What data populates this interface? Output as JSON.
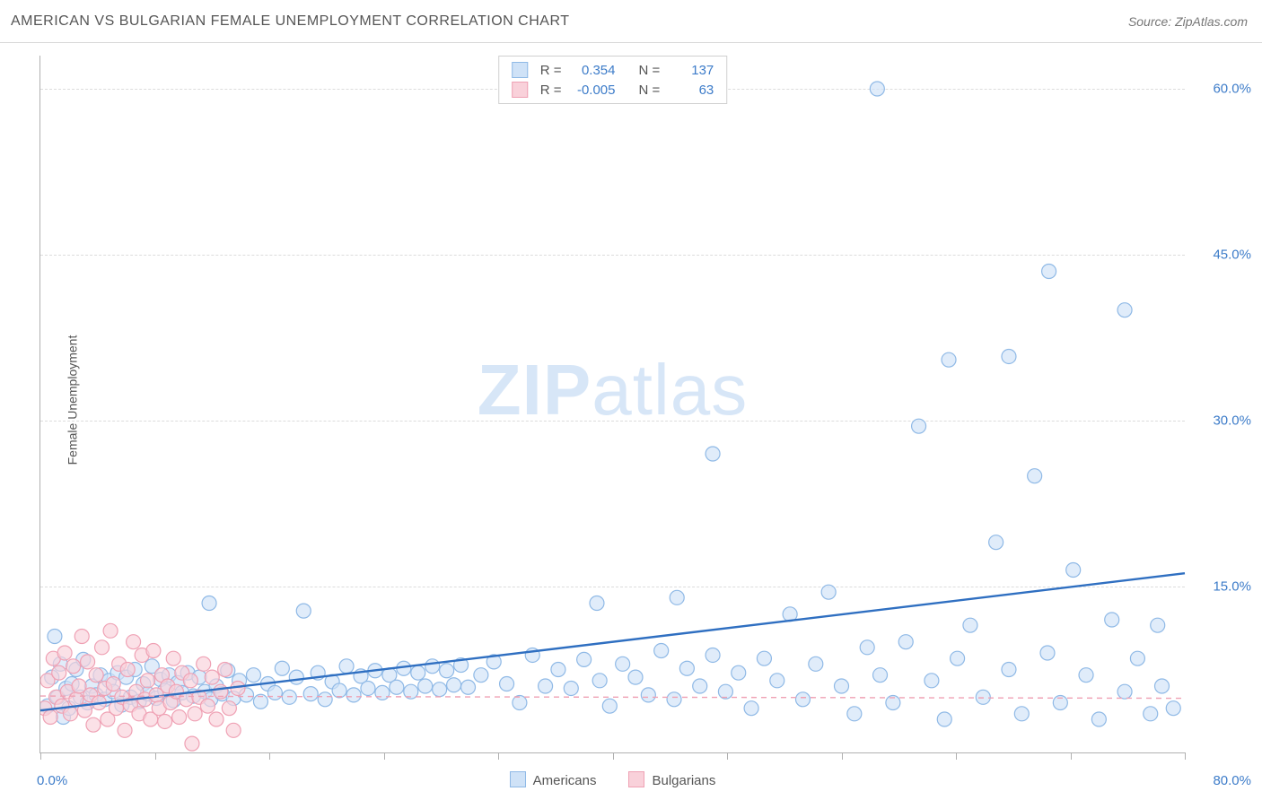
{
  "title": "AMERICAN VS BULGARIAN FEMALE UNEMPLOYMENT CORRELATION CHART",
  "source_prefix": "Source: ",
  "source_link": "ZipAtlas.com",
  "ylabel": "Female Unemployment",
  "watermark_bold": "ZIP",
  "watermark_rest": "atlas",
  "chart": {
    "type": "scatter",
    "xlim": [
      0,
      80
    ],
    "ylim": [
      0,
      63
    ],
    "yticks": [
      15,
      30,
      45,
      60
    ],
    "ytick_labels": [
      "15.0%",
      "30.0%",
      "45.0%",
      "60.0%"
    ],
    "xticks": [
      0,
      8,
      16,
      24,
      32,
      40,
      48,
      56,
      64,
      72,
      80
    ],
    "x_origin_label": "0.0%",
    "x_max_label": "80.0%",
    "background_color": "#ffffff",
    "grid_color": "#dcdcdc",
    "axis_color": "#b0b0b0",
    "tick_label_color": "#3d7cc9",
    "marker_radius": 8,
    "marker_stroke_width": 1.2,
    "series": [
      {
        "name": "Americans",
        "fill": "#cfe2f7",
        "stroke": "#8fb9e6",
        "fill_opacity": 0.65,
        "R_label": "R =",
        "R_value": "0.354",
        "N_label": "N =",
        "N_value": "137",
        "trend": {
          "y_at_x0": 3.8,
          "y_at_xmax": 16.2,
          "stroke": "#2f6fc1",
          "width": 2.4,
          "dash": ""
        },
        "points": [
          [
            0.5,
            4.2
          ],
          [
            0.8,
            6.8
          ],
          [
            1.0,
            10.5
          ],
          [
            1.2,
            5.0
          ],
          [
            1.4,
            8.0
          ],
          [
            1.6,
            3.2
          ],
          [
            1.8,
            5.8
          ],
          [
            2.0,
            4.0
          ],
          [
            2.2,
            6.2
          ],
          [
            2.5,
            7.5
          ],
          [
            2.8,
            5.0
          ],
          [
            3.0,
            8.4
          ],
          [
            3.3,
            4.5
          ],
          [
            3.6,
            6.0
          ],
          [
            3.9,
            5.2
          ],
          [
            4.2,
            7.0
          ],
          [
            4.5,
            4.8
          ],
          [
            4.8,
            6.5
          ],
          [
            5.1,
            5.5
          ],
          [
            5.4,
            7.2
          ],
          [
            5.7,
            4.3
          ],
          [
            6.0,
            6.8
          ],
          [
            6.3,
            5.0
          ],
          [
            6.6,
            7.5
          ],
          [
            6.9,
            4.6
          ],
          [
            7.2,
            6.2
          ],
          [
            7.5,
            5.3
          ],
          [
            7.8,
            7.8
          ],
          [
            8.1,
            4.9
          ],
          [
            8.4,
            6.6
          ],
          [
            8.7,
            5.6
          ],
          [
            9.0,
            7.0
          ],
          [
            9.3,
            4.7
          ],
          [
            9.6,
            6.3
          ],
          [
            9.9,
            5.4
          ],
          [
            10.3,
            7.2
          ],
          [
            10.7,
            5.1
          ],
          [
            11.1,
            6.8
          ],
          [
            11.5,
            5.5
          ],
          [
            11.8,
            13.5
          ],
          [
            11.9,
            4.8
          ],
          [
            12.3,
            6.0
          ],
          [
            12.7,
            5.3
          ],
          [
            13.1,
            7.4
          ],
          [
            13.5,
            4.9
          ],
          [
            13.9,
            6.5
          ],
          [
            14.4,
            5.2
          ],
          [
            14.9,
            7.0
          ],
          [
            15.4,
            4.6
          ],
          [
            15.9,
            6.2
          ],
          [
            16.4,
            5.4
          ],
          [
            16.9,
            7.6
          ],
          [
            17.4,
            5.0
          ],
          [
            17.9,
            6.8
          ],
          [
            18.4,
            12.8
          ],
          [
            18.9,
            5.3
          ],
          [
            19.4,
            7.2
          ],
          [
            19.9,
            4.8
          ],
          [
            20.4,
            6.4
          ],
          [
            20.9,
            5.6
          ],
          [
            21.4,
            7.8
          ],
          [
            21.9,
            5.2
          ],
          [
            22.4,
            6.9
          ],
          [
            22.9,
            5.8
          ],
          [
            23.4,
            7.4
          ],
          [
            23.9,
            5.4
          ],
          [
            24.4,
            7.0
          ],
          [
            24.9,
            5.9
          ],
          [
            25.4,
            7.6
          ],
          [
            25.9,
            5.5
          ],
          [
            26.4,
            7.2
          ],
          [
            26.9,
            6.0
          ],
          [
            27.4,
            7.8
          ],
          [
            27.9,
            5.7
          ],
          [
            28.4,
            7.4
          ],
          [
            28.9,
            6.1
          ],
          [
            29.4,
            7.9
          ],
          [
            29.9,
            5.9
          ],
          [
            30.8,
            7.0
          ],
          [
            31.7,
            8.2
          ],
          [
            32.6,
            6.2
          ],
          [
            33.5,
            4.5
          ],
          [
            34.4,
            8.8
          ],
          [
            35.3,
            6.0
          ],
          [
            36.2,
            7.5
          ],
          [
            37.1,
            5.8
          ],
          [
            38.0,
            8.4
          ],
          [
            38.9,
            13.5
          ],
          [
            39.1,
            6.5
          ],
          [
            39.8,
            4.2
          ],
          [
            40.7,
            8.0
          ],
          [
            41.6,
            6.8
          ],
          [
            42.5,
            5.2
          ],
          [
            43.4,
            9.2
          ],
          [
            44.3,
            4.8
          ],
          [
            44.5,
            14.0
          ],
          [
            45.2,
            7.6
          ],
          [
            46.1,
            6.0
          ],
          [
            47.0,
            27.0
          ],
          [
            47.0,
            8.8
          ],
          [
            47.9,
            5.5
          ],
          [
            48.8,
            7.2
          ],
          [
            49.7,
            4.0
          ],
          [
            50.6,
            8.5
          ],
          [
            51.5,
            6.5
          ],
          [
            52.4,
            12.5
          ],
          [
            53.3,
            4.8
          ],
          [
            54.2,
            8.0
          ],
          [
            55.1,
            14.5
          ],
          [
            56.0,
            6.0
          ],
          [
            56.9,
            3.5
          ],
          [
            57.8,
            9.5
          ],
          [
            58.5,
            60.0
          ],
          [
            58.7,
            7.0
          ],
          [
            59.6,
            4.5
          ],
          [
            60.5,
            10.0
          ],
          [
            61.4,
            29.5
          ],
          [
            62.3,
            6.5
          ],
          [
            63.2,
            3.0
          ],
          [
            63.5,
            35.5
          ],
          [
            64.1,
            8.5
          ],
          [
            65.0,
            11.5
          ],
          [
            65.9,
            5.0
          ],
          [
            66.8,
            19.0
          ],
          [
            67.7,
            35.8
          ],
          [
            67.7,
            7.5
          ],
          [
            68.6,
            3.5
          ],
          [
            69.5,
            25.0
          ],
          [
            70.4,
            9.0
          ],
          [
            70.5,
            43.5
          ],
          [
            71.3,
            4.5
          ],
          [
            72.2,
            16.5
          ],
          [
            73.1,
            7.0
          ],
          [
            74.0,
            3.0
          ],
          [
            74.9,
            12.0
          ],
          [
            75.8,
            40.0
          ],
          [
            75.8,
            5.5
          ],
          [
            76.7,
            8.5
          ],
          [
            77.6,
            3.5
          ],
          [
            78.1,
            11.5
          ],
          [
            78.4,
            6.0
          ],
          [
            79.2,
            4.0
          ]
        ]
      },
      {
        "name": "Bulgarians",
        "fill": "#f9d1da",
        "stroke": "#efa1b4",
        "fill_opacity": 0.65,
        "R_label": "R =",
        "R_value": "-0.005",
        "N_label": "N =",
        "N_value": "63",
        "trend": {
          "y_at_x0": 5.1,
          "y_at_xmax": 4.9,
          "stroke": "#efa1b4",
          "width": 1.4,
          "dash": "6,5"
        },
        "points": [
          [
            0.3,
            4.0
          ],
          [
            0.5,
            6.5
          ],
          [
            0.7,
            3.2
          ],
          [
            0.9,
            8.5
          ],
          [
            1.1,
            5.0
          ],
          [
            1.3,
            7.2
          ],
          [
            1.5,
            4.2
          ],
          [
            1.7,
            9.0
          ],
          [
            1.9,
            5.5
          ],
          [
            2.1,
            3.5
          ],
          [
            2.3,
            7.8
          ],
          [
            2.5,
            4.8
          ],
          [
            2.7,
            6.0
          ],
          [
            2.9,
            10.5
          ],
          [
            3.1,
            3.8
          ],
          [
            3.3,
            8.2
          ],
          [
            3.5,
            5.2
          ],
          [
            3.7,
            2.5
          ],
          [
            3.9,
            7.0
          ],
          [
            4.1,
            4.5
          ],
          [
            4.3,
            9.5
          ],
          [
            4.5,
            5.8
          ],
          [
            4.7,
            3.0
          ],
          [
            4.9,
            11.0
          ],
          [
            5.1,
            6.2
          ],
          [
            5.3,
            4.0
          ],
          [
            5.5,
            8.0
          ],
          [
            5.7,
            5.0
          ],
          [
            5.9,
            2.0
          ],
          [
            6.1,
            7.5
          ],
          [
            6.3,
            4.3
          ],
          [
            6.5,
            10.0
          ],
          [
            6.7,
            5.5
          ],
          [
            6.9,
            3.5
          ],
          [
            7.1,
            8.8
          ],
          [
            7.3,
            4.8
          ],
          [
            7.5,
            6.5
          ],
          [
            7.7,
            3.0
          ],
          [
            7.9,
            9.2
          ],
          [
            8.1,
            5.2
          ],
          [
            8.3,
            4.0
          ],
          [
            8.5,
            7.0
          ],
          [
            8.7,
            2.8
          ],
          [
            8.9,
            6.0
          ],
          [
            9.1,
            4.5
          ],
          [
            9.3,
            8.5
          ],
          [
            9.5,
            5.5
          ],
          [
            9.7,
            3.2
          ],
          [
            9.9,
            7.2
          ],
          [
            10.2,
            4.8
          ],
          [
            10.5,
            6.5
          ],
          [
            10.6,
            0.8
          ],
          [
            10.8,
            3.5
          ],
          [
            11.1,
            5.0
          ],
          [
            11.4,
            8.0
          ],
          [
            11.7,
            4.2
          ],
          [
            12.0,
            6.8
          ],
          [
            12.3,
            3.0
          ],
          [
            12.6,
            5.5
          ],
          [
            12.9,
            7.5
          ],
          [
            13.2,
            4.0
          ],
          [
            13.5,
            2.0
          ],
          [
            13.8,
            5.8
          ]
        ]
      }
    ]
  },
  "bottom_legend": [
    {
      "label": "Americans",
      "fill": "#cfe2f7",
      "stroke": "#8fb9e6"
    },
    {
      "label": "Bulgarians",
      "fill": "#f9d1da",
      "stroke": "#efa1b4"
    }
  ]
}
